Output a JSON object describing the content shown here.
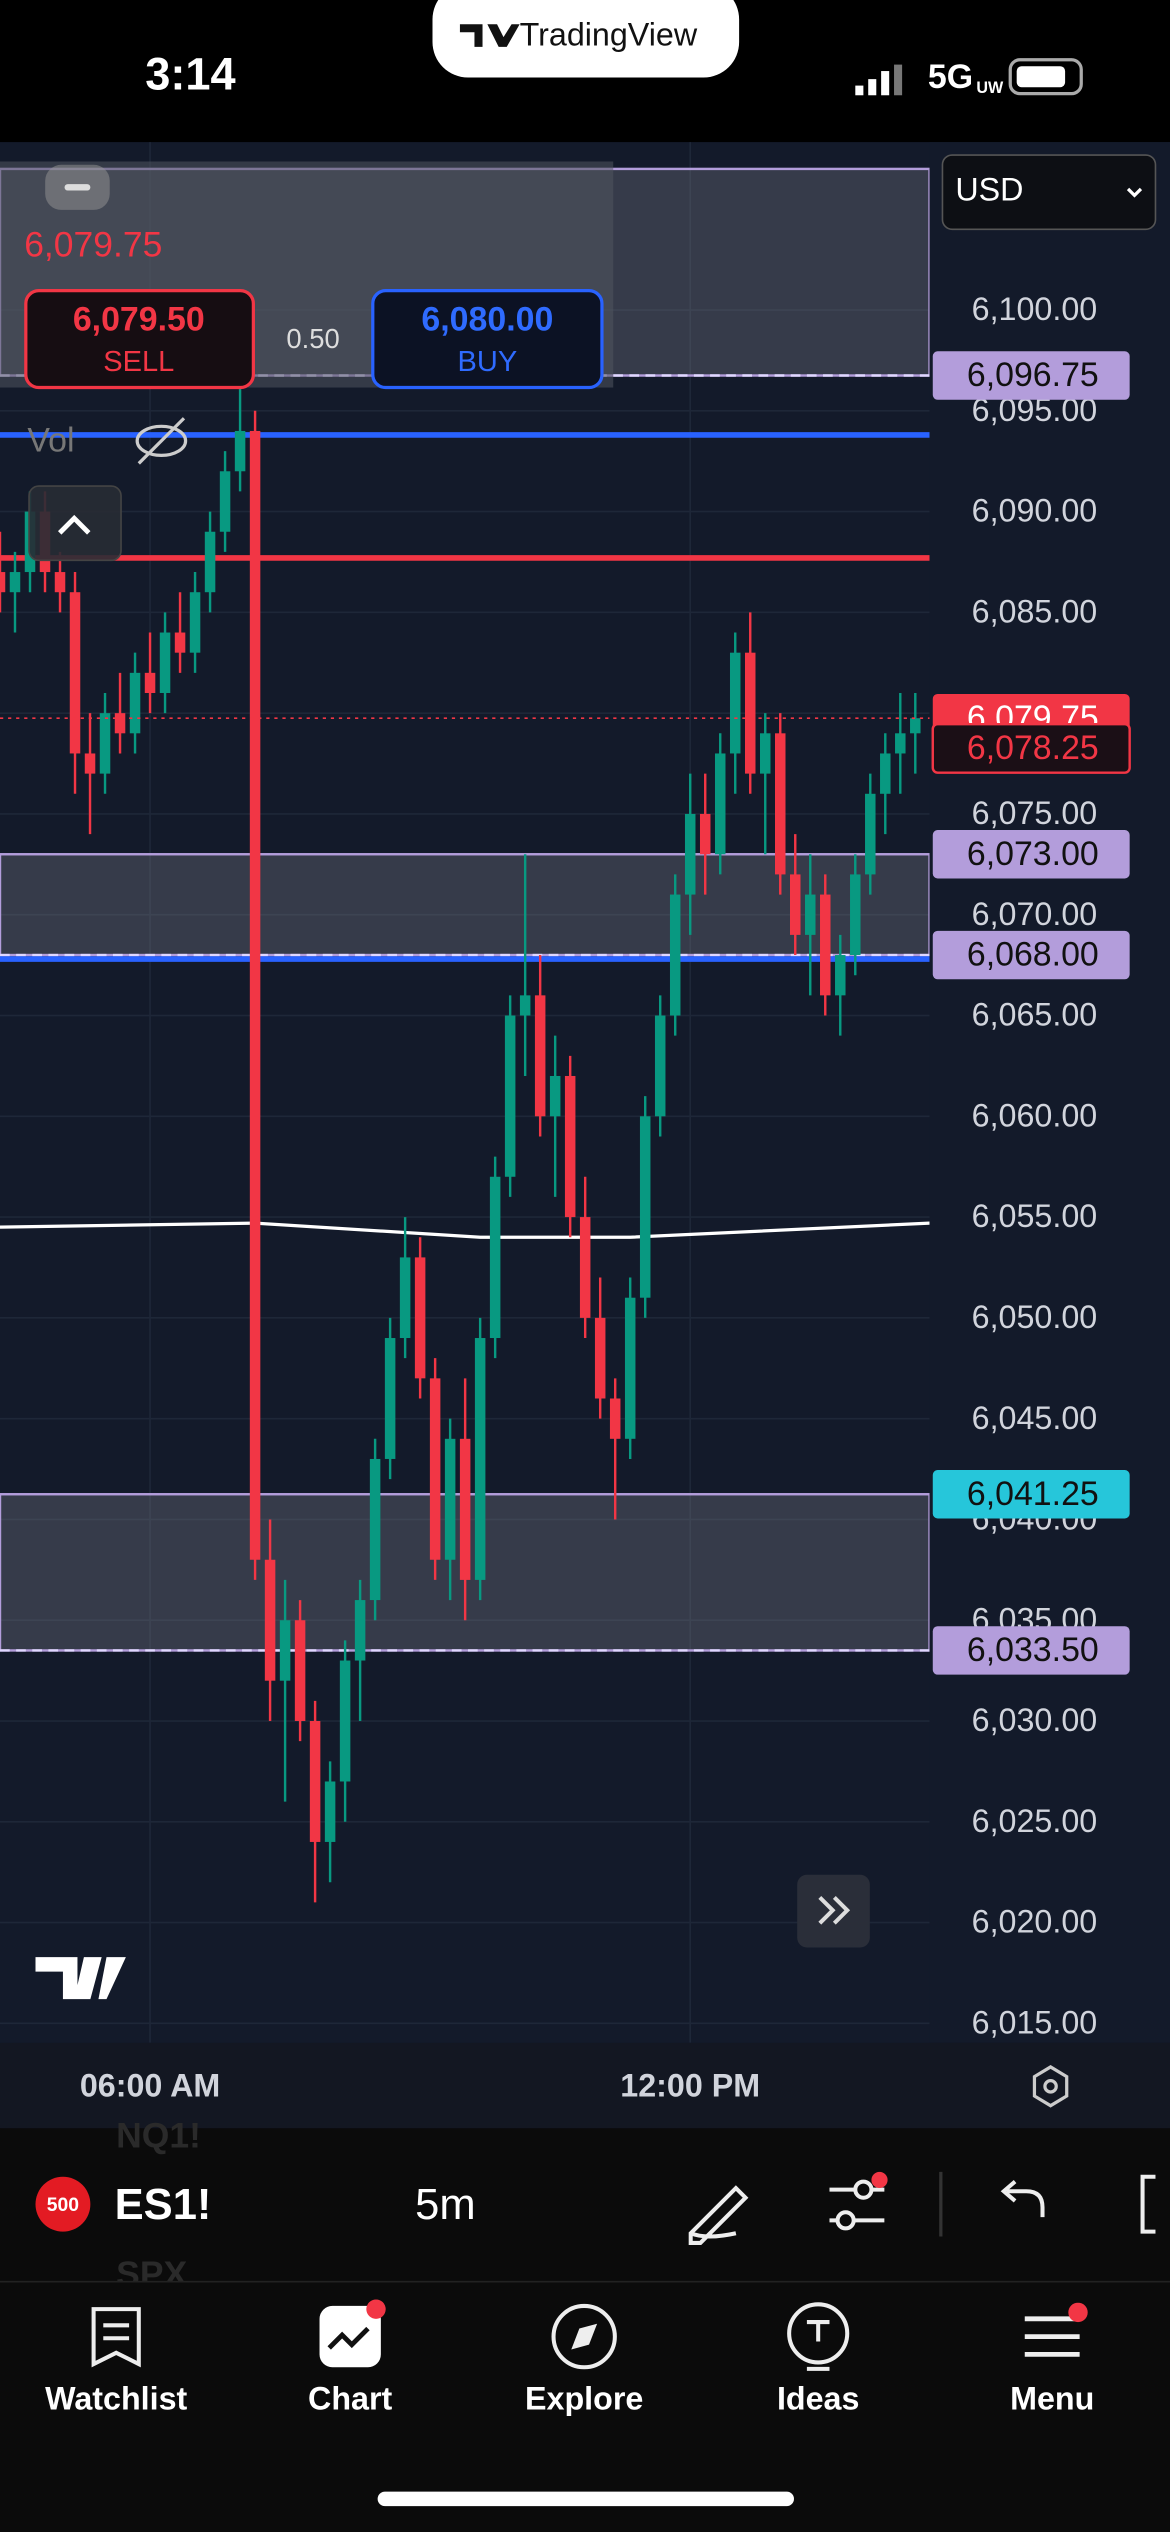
{
  "status_bar": {
    "time": "3:14",
    "network": "5G",
    "network_suffix": "UW"
  },
  "app_badge": "TradingView",
  "chart_panel": {
    "currency": "USD",
    "last_price": "6,079.75",
    "sell": {
      "price": "6,079.50",
      "label": "SELL"
    },
    "spread": "0.50",
    "buy": {
      "price": "6,080.00",
      "label": "BUY"
    },
    "volume_label": "Vol"
  },
  "chart_data": {
    "type": "candlestick",
    "x": [
      -20,
      -18,
      -16,
      -14,
      -12,
      -10,
      -8,
      -6,
      -4,
      -2,
      0,
      2,
      4,
      6,
      8,
      10,
      12,
      14,
      16,
      18,
      20,
      22,
      24,
      26,
      28,
      30,
      32,
      34,
      36,
      38,
      40,
      42,
      44,
      46,
      48,
      50,
      52,
      54,
      56,
      58,
      60,
      62,
      64,
      66,
      68,
      70,
      72,
      74,
      76,
      78,
      80,
      82,
      84,
      86,
      88,
      90,
      92,
      94,
      96,
      98,
      100,
      102
    ],
    "open": [
      6087,
      6086,
      6087,
      6090,
      6087,
      6086,
      6078,
      6077,
      6080,
      6079,
      6082,
      6081,
      6084,
      6083,
      6086,
      6089,
      6092,
      6094,
      6038,
      6032,
      6035,
      6030,
      6024,
      6027,
      6033,
      6036,
      6043,
      6049,
      6053,
      6047,
      6038,
      6044,
      6037,
      6049,
      6057,
      6065,
      6066,
      6060,
      6062,
      6055,
      6050,
      6046,
      6044,
      6051,
      6060,
      6065,
      6071,
      6075,
      6073,
      6078,
      6083,
      6077,
      6079,
      6072,
      6069,
      6071,
      6066,
      6068,
      6072,
      6076,
      6078,
      6079
    ],
    "high": [
      6089,
      6088,
      6091,
      6091,
      6088,
      6087,
      6080,
      6081,
      6082,
      6083,
      6084,
      6085,
      6086,
      6087,
      6090,
      6093,
      6098,
      6095,
      6040,
      6037,
      6036,
      6031,
      6028,
      6034,
      6037,
      6044,
      6050,
      6055,
      6054,
      6048,
      6045,
      6047,
      6050,
      6058,
      6066,
      6073,
      6068,
      6064,
      6063,
      6057,
      6052,
      6047,
      6052,
      6061,
      6066,
      6072,
      6077,
      6077,
      6079,
      6084,
      6085,
      6080,
      6080,
      6074,
      6073,
      6072,
      6069,
      6073,
      6077,
      6079,
      6081,
      6081
    ],
    "low": [
      6085,
      6084,
      6086,
      6086,
      6085,
      6076,
      6074,
      6076,
      6078,
      6078,
      6080,
      6080,
      6082,
      6082,
      6085,
      6088,
      6091,
      6037,
      6030,
      6026,
      6029,
      6021,
      6022,
      6025,
      6030,
      6035,
      6042,
      6048,
      6046,
      6037,
      6036,
      6035,
      6036,
      6048,
      6056,
      6062,
      6059,
      6056,
      6054,
      6049,
      6045,
      6040,
      6043,
      6050,
      6059,
      6064,
      6069,
      6071,
      6072,
      6076,
      6076,
      6073,
      6071,
      6068,
      6066,
      6065,
      6064,
      6067,
      6071,
      6074,
      6076,
      6077
    ],
    "close": [
      6086,
      6087,
      6090,
      6087,
      6086,
      6078,
      6077,
      6080,
      6079,
      6082,
      6081,
      6084,
      6083,
      6086,
      6089,
      6092,
      6094,
      6038,
      6032,
      6035,
      6030,
      6024,
      6027,
      6033,
      6036,
      6043,
      6049,
      6053,
      6047,
      6038,
      6044,
      6037,
      6049,
      6057,
      6065,
      6066,
      6060,
      6062,
      6055,
      6050,
      6046,
      6044,
      6051,
      6060,
      6065,
      6071,
      6075,
      6073,
      6078,
      6083,
      6077,
      6079,
      6072,
      6069,
      6071,
      6066,
      6068,
      6072,
      6076,
      6078,
      6079,
      6079.75
    ],
    "up_color": "#089981",
    "down_color": "#f23645",
    "xlim": [
      -20,
      103.9
    ],
    "ylim": [
      6014.04,
      6108.33
    ],
    "xticks": [
      {
        "value": 0,
        "label": "06:00 AM"
      },
      {
        "value": 72,
        "label": "12:00 PM"
      }
    ],
    "yticks": [
      {
        "value": 6100,
        "label": "6,100.00"
      },
      {
        "value": 6095,
        "label": "6,095.00"
      },
      {
        "value": 6090,
        "label": "6,090.00"
      },
      {
        "value": 6085,
        "label": "6,085.00"
      },
      {
        "value": 6080,
        "label": "6,080.00"
      },
      {
        "value": 6075,
        "label": "6,075.00"
      },
      {
        "value": 6070,
        "label": "6,070.00"
      },
      {
        "value": 6065,
        "label": "6,065.00"
      },
      {
        "value": 6060,
        "label": "6,060.00"
      },
      {
        "value": 6055,
        "label": "6,055.00"
      },
      {
        "value": 6050,
        "label": "6,050.00"
      },
      {
        "value": 6045,
        "label": "6,045.00"
      },
      {
        "value": 6040,
        "label": "6,040.00"
      },
      {
        "value": 6035,
        "label": "6,035.00"
      },
      {
        "value": 6030,
        "label": "6,030.00"
      },
      {
        "value": 6025,
        "label": "6,025.00"
      },
      {
        "value": 6020,
        "label": "6,020.00"
      },
      {
        "value": 6015,
        "label": "6,015.00"
      }
    ],
    "grid": true,
    "zones": [
      [
        6096.75,
        6107
      ],
      [
        6068,
        6073
      ],
      [
        6033.5,
        6041.25
      ]
    ],
    "lines": [
      6093.8,
      6087.7,
      6067.8
    ],
    "line_colors": [
      "#2962ff",
      "#f23645",
      "#2962ff"
    ],
    "ma_x": [
      -20,
      14,
      44,
      64,
      103.9
    ],
    "ma_values": [
      6054.5,
      6054.7,
      6054.0,
      6054.0,
      6054.7
    ],
    "ma_color": "#ffffff",
    "price_badges": [
      {
        "value": 6096.75,
        "label": "6,096.75"
      },
      {
        "value": 6079.75,
        "label": "6,079.75"
      },
      {
        "value": 6078.25,
        "label": "6,078.25"
      },
      {
        "value": 6073,
        "label": "6,073.00"
      },
      {
        "value": 6068,
        "label": "6,068.00"
      },
      {
        "value": 6041.25,
        "label": "6,041.25"
      },
      {
        "value": 6033.5,
        "label": "6,033.50"
      }
    ],
    "price_badge_colors": [
      "#b39ddb",
      "#f23645",
      "#1b0f16",
      "#b39ddb",
      "#b39ddb",
      "#26c6da",
      "#b39ddb"
    ],
    "price_badge_text_colors": [
      "#111111",
      "#ffffff",
      "#f23645",
      "#111111",
      "#111111",
      "#111111",
      "#111111"
    ]
  },
  "toolbar": {
    "badge": "500",
    "symbol": "ES1!",
    "interval": "5m",
    "ghost_symbols": [
      "NQ1!",
      "SPX"
    ]
  },
  "tab_bar": {
    "items": [
      "Watchlist",
      "Chart",
      "Explore",
      "Ideas",
      "Menu"
    ]
  }
}
